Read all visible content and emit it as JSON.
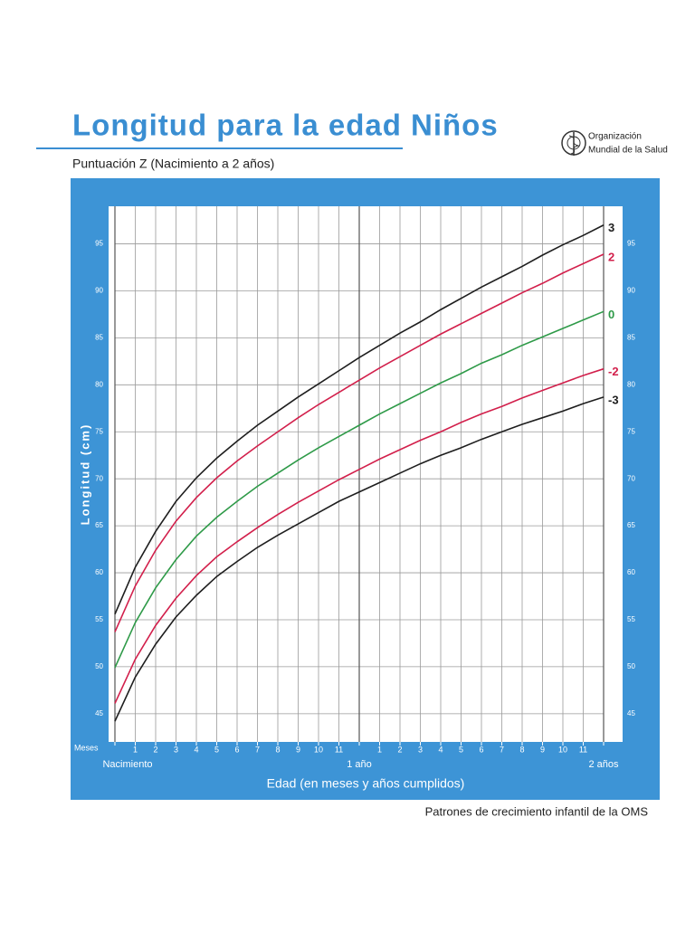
{
  "logo_text": [
    "Organización",
    "Mundial de la Salud"
  ],
  "chart_data": {
    "type": "line",
    "title": "Longitud para la edad Niños",
    "subtitle": "Puntuación Z (Nacimiento a 2 años)",
    "y_label": "Longitud (cm)",
    "x_label": "Edad (en meses y años cumplidos)",
    "x_unit_label": "Meses",
    "source": "Patrones de crecimiento infantil de la OMS",
    "x": [
      0,
      1,
      2,
      3,
      4,
      5,
      6,
      7,
      8,
      9,
      10,
      11,
      12,
      13,
      14,
      15,
      16,
      17,
      18,
      19,
      20,
      21,
      22,
      23,
      24
    ],
    "xlim": [
      0,
      24
    ],
    "xticks": [
      {
        "value": 0,
        "label": "Nacimiento"
      },
      1,
      2,
      3,
      4,
      5,
      6,
      7,
      8,
      9,
      10,
      11,
      {
        "value": 12,
        "label": "1 año"
      },
      {
        "value": 13,
        "label": "1"
      },
      {
        "value": 14,
        "label": "2"
      },
      {
        "value": 15,
        "label": "3"
      },
      {
        "value": 16,
        "label": "4"
      },
      {
        "value": 17,
        "label": "5"
      },
      {
        "value": 18,
        "label": "6"
      },
      {
        "value": 19,
        "label": "7"
      },
      {
        "value": 20,
        "label": "8"
      },
      {
        "value": 21,
        "label": "9"
      },
      {
        "value": 22,
        "label": "10"
      },
      {
        "value": 23,
        "label": "11"
      },
      {
        "value": 24,
        "label": "2 años"
      }
    ],
    "ylim": [
      42,
      99
    ],
    "yticks": [
      45,
      50,
      55,
      60,
      65,
      70,
      75,
      80,
      85,
      90,
      95
    ],
    "grid": true,
    "series": [
      {
        "name": "3",
        "color": "#1e1e1e",
        "values": [
          55.6,
          60.6,
          64.4,
          67.6,
          70.1,
          72.2,
          74.0,
          75.7,
          77.2,
          78.7,
          80.1,
          81.5,
          82.9,
          84.2,
          85.5,
          86.7,
          88.0,
          89.2,
          90.4,
          91.5,
          92.6,
          93.8,
          94.9,
          95.9,
          97.0
        ]
      },
      {
        "name": "2",
        "color": "#d21f4b",
        "values": [
          53.7,
          58.6,
          62.4,
          65.5,
          68.0,
          70.1,
          71.9,
          73.5,
          75.0,
          76.5,
          77.9,
          79.2,
          80.5,
          81.8,
          83.0,
          84.2,
          85.4,
          86.5,
          87.6,
          88.7,
          89.8,
          90.8,
          91.9,
          92.9,
          93.9
        ]
      },
      {
        "name": "0",
        "color": "#2e9a48",
        "values": [
          49.9,
          54.7,
          58.4,
          61.4,
          63.9,
          65.9,
          67.6,
          69.2,
          70.6,
          72.0,
          73.3,
          74.5,
          75.7,
          76.9,
          78.0,
          79.1,
          80.2,
          81.2,
          82.3,
          83.2,
          84.2,
          85.1,
          86.0,
          86.9,
          87.8
        ]
      },
      {
        "name": "-2",
        "color": "#d21f4b",
        "values": [
          46.1,
          50.8,
          54.4,
          57.3,
          59.7,
          61.7,
          63.3,
          64.8,
          66.2,
          67.5,
          68.7,
          69.9,
          71.0,
          72.1,
          73.1,
          74.1,
          75.0,
          76.0,
          76.9,
          77.7,
          78.6,
          79.4,
          80.2,
          81.0,
          81.7
        ]
      },
      {
        "name": "-3",
        "color": "#1e1e1e",
        "values": [
          44.2,
          48.9,
          52.4,
          55.3,
          57.6,
          59.6,
          61.2,
          62.7,
          64.0,
          65.2,
          66.4,
          67.6,
          68.6,
          69.6,
          70.6,
          71.6,
          72.5,
          73.3,
          74.2,
          75.0,
          75.8,
          76.5,
          77.2,
          78.0,
          78.7
        ]
      }
    ]
  }
}
